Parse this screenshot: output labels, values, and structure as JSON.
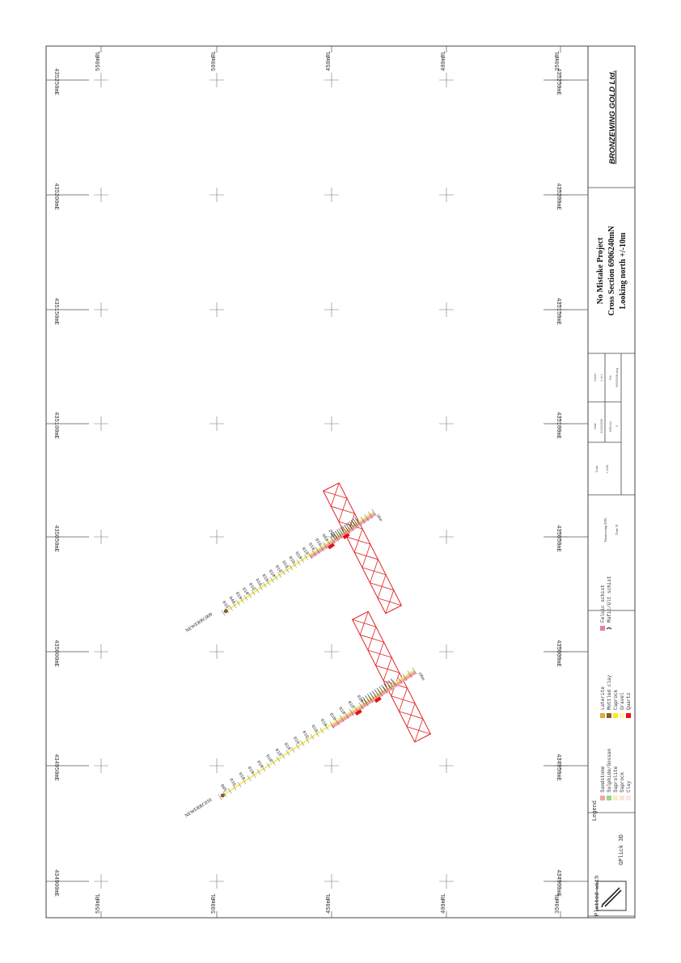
{
  "section": {
    "rl_top_labels": [
      "550mRL",
      "500mRL",
      "450mRL",
      "400mRL",
      "350mRL"
    ],
    "rl_bottom_labels": [
      "550mRL",
      "500mRL",
      "450mRL",
      "400mRL",
      "350mRL"
    ],
    "east_left_labels": [
      "435250mE",
      "435200mE",
      "435150mE",
      "435100mE",
      "435050mE",
      "435000mE",
      "434950mE",
      "434900mE"
    ],
    "east_right_labels": [
      "435250mE",
      "435200mE",
      "435150mE",
      "435100mE",
      "435050mE",
      "435000mE",
      "434950mE",
      "434900mE"
    ]
  },
  "holes": [
    {
      "name": "NEWERRC009",
      "end_label": "58m",
      "trace_color": "#f2ee70",
      "intervals": [
        "010",
        "040",
        "010",
        "010",
        "010",
        "010",
        "010",
        "010",
        "010",
        "010",
        "010",
        "010",
        "010",
        "010",
        "010",
        "010",
        "210"
      ]
    },
    {
      "name": "NEWERRC010",
      "end_label": "100m",
      "trace_color": "#f2ee70",
      "intervals": [
        "005",
        "010",
        "010",
        "010",
        "010",
        "010",
        "010",
        "010",
        "010",
        "010",
        "010",
        "010",
        "010",
        "010",
        "010",
        "010"
      ]
    }
  ],
  "legend": {
    "title": "Legend",
    "items": [
      {
        "label": "Sandstone",
        "color": "#f4a3a3"
      },
      {
        "label": "Sulphide/Gossan",
        "color": "#9fd48a"
      },
      {
        "label": "Saprolite",
        "color": "#f8efc0"
      },
      {
        "label": "Saprock",
        "color": "#fbe6d6"
      },
      {
        "label": "Clay",
        "color": "#fbe8e0"
      },
      {
        "label": "Laterite",
        "color": "#e0a93c"
      },
      {
        "label": "Mottled clay",
        "color": "#8a5a2b"
      },
      {
        "label": "Caprock",
        "color": "#f2ee1e"
      },
      {
        "label": "Gravel",
        "color": "#fff4b0"
      },
      {
        "label": "Quartz",
        "color": "#e81010"
      },
      {
        "label": "Felsic schist",
        "color": "#ee7aa0"
      },
      {
        "label": "Mafic/Ult schist",
        "color": "#333333"
      }
    ]
  },
  "plotted": {
    "line1": "Plotted with",
    "line2": "GPlick 3D"
  },
  "info": {
    "datum_label": "Bronzewing AMG",
    "zone_label": "Zone 51",
    "scale_label": "Scale",
    "scale_value": "1:1000",
    "date_label": "Date",
    "date_value": "21/02/2008",
    "sheet_label": "Sheet",
    "sheet_value": "1 of 1",
    "file_label": "File",
    "file_value": "6906240N.dwg",
    "rev_label": "REV No.",
    "rev_value": "0"
  },
  "title": {
    "line1": "No Mistake Project",
    "line2": "Cross Section 6906240mN",
    "line3": "Looking north +/-10m"
  },
  "company": "BRONZEWING GOLD Ltd.",
  "colors": {
    "zone": "#e02020",
    "trace": "#f2ee70",
    "frame": "#444444",
    "ink": "#333333"
  }
}
